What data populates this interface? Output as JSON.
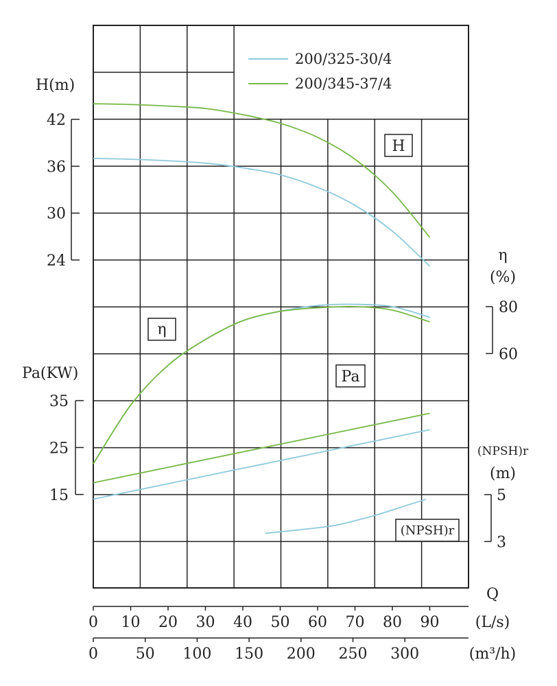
{
  "chart_data": {
    "type": "line",
    "legend": {
      "placement": "top-right",
      "entries": [
        {
          "name": "200/325-30/4",
          "color": "#8ec9dc"
        },
        {
          "name": "200/345-37/4",
          "color": "#77b847"
        }
      ]
    },
    "axes": {
      "H": {
        "label": "H(m)",
        "ticks": [
          "42",
          "36",
          "30",
          "24"
        ],
        "range": [
          24,
          42
        ]
      },
      "eta": {
        "label_top": "η",
        "label_bottom": "(%)",
        "ticks": [
          "80",
          "60"
        ],
        "range": [
          60,
          80
        ]
      },
      "Pa": {
        "label": "Pa(KW)",
        "ticks": [
          "35",
          "25",
          "15"
        ],
        "range": [
          15,
          35
        ]
      },
      "npsh": {
        "label_top": "(NPSH)r",
        "label_bottom": "(m)",
        "ticks": [
          "5",
          "3"
        ],
        "range": [
          3,
          5
        ]
      },
      "q_title": "Q",
      "q_ls": {
        "unit": "(L/s)",
        "ticks": [
          "0",
          "10",
          "20",
          "30",
          "40",
          "50",
          "60",
          "70",
          "80",
          "90"
        ]
      },
      "q_m3h": {
        "unit": "(m³/h)",
        "ticks": [
          "0",
          "50",
          "100",
          "150",
          "200",
          "250",
          "300"
        ]
      }
    },
    "curve_labels": {
      "H": "H",
      "eta": "η",
      "Pa": "Pa",
      "npsh": "(NPSH)r"
    },
    "series": [
      {
        "name": "200/325-30/4",
        "curve": "H",
        "x_ls": [
          0,
          10,
          20,
          30,
          40,
          50,
          60,
          70,
          80,
          90
        ],
        "values": [
          37.0,
          36.9,
          36.7,
          36.4,
          35.8,
          34.9,
          33.3,
          31.0,
          27.7,
          23.2
        ]
      },
      {
        "name": "200/345-37/4",
        "curve": "H",
        "x_ls": [
          0,
          10,
          20,
          30,
          40,
          50,
          60,
          70,
          80,
          90
        ],
        "values": [
          44.0,
          43.9,
          43.7,
          43.4,
          42.6,
          41.5,
          39.7,
          36.9,
          32.7,
          26.9
        ]
      },
      {
        "name": "200/325-30/4",
        "curve": "eta",
        "x_ls": [
          0,
          10,
          20,
          30,
          40,
          50,
          60,
          70,
          80,
          90
        ],
        "values": [
          13,
          38,
          55,
          66,
          74,
          78,
          80.5,
          81,
          80,
          75.5
        ]
      },
      {
        "name": "200/345-37/4",
        "curve": "eta",
        "x_ls": [
          0,
          10,
          20,
          30,
          40,
          50,
          60,
          70,
          80,
          90
        ],
        "values": [
          13,
          38,
          55,
          66,
          74,
          78,
          79.5,
          80,
          78.5,
          73.5
        ]
      },
      {
        "name": "200/325-30/4",
        "curve": "Pa",
        "x_ls": [
          0,
          90
        ],
        "values": [
          14,
          28.8
        ]
      },
      {
        "name": "200/345-37/4",
        "curve": "Pa",
        "x_ls": [
          0,
          90
        ],
        "values": [
          17.5,
          32.3
        ]
      },
      {
        "name": "200/325-30/4",
        "curve": "npsh",
        "x_ls": [
          46,
          55,
          65,
          75,
          85,
          89
        ],
        "values": [
          3.35,
          3.5,
          3.7,
          4.1,
          4.6,
          4.8
        ]
      }
    ]
  }
}
